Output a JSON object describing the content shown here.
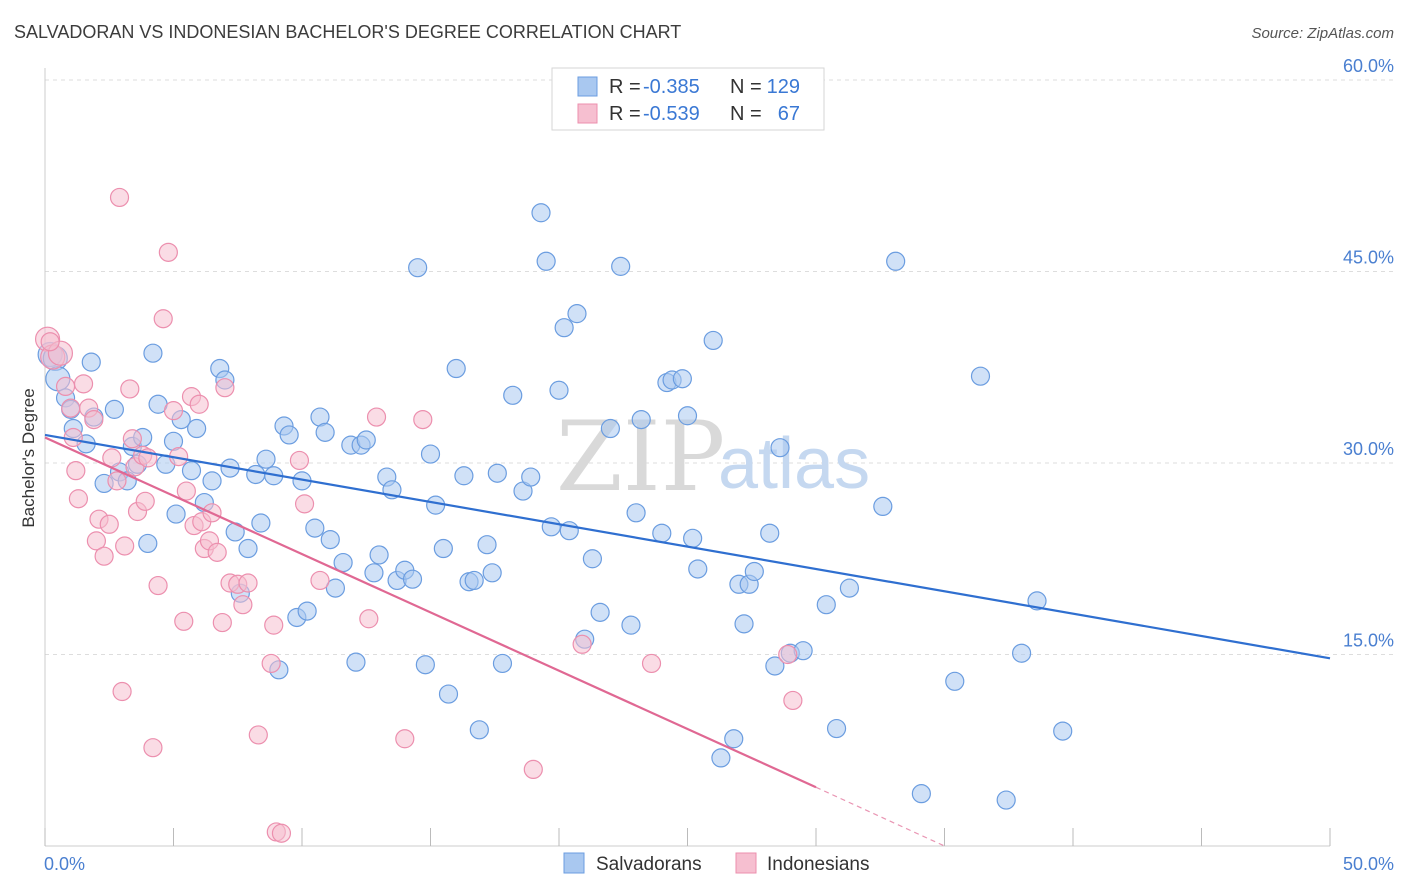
{
  "title": "SALVADORAN VS INDONESIAN BACHELOR'S DEGREE CORRELATION CHART",
  "source": "Source: ZipAtlas.com",
  "watermark": {
    "zip": "ZIP",
    "atlas": "atlas"
  },
  "colors": {
    "blue_fill": "#a9c8f0",
    "blue_stroke": "#6b9de0",
    "blue_line": "#2f6fd0",
    "pink_fill": "#f6bfd0",
    "pink_stroke": "#ec8fae",
    "pink_line": "#e06893",
    "grid": "#dddddd",
    "tick_text": "#4a7fd0"
  },
  "legend": {
    "r_label": "R =",
    "n_label": "N =",
    "rows": [
      {
        "r": "-0.385",
        "n": "129",
        "color": "blue"
      },
      {
        "r": "-0.539",
        "n": "67",
        "color": "pink"
      }
    ]
  },
  "chart_data": {
    "type": "scatter",
    "title": "SALVADORAN VS INDONESIAN BACHELOR'S DEGREE CORRELATION CHART",
    "xlabel": "",
    "ylabel": "Bachelor's Degree",
    "xlim": [
      0,
      50
    ],
    "ylim": [
      0,
      60
    ],
    "x_ticks": [
      "0.0%",
      "50.0%"
    ],
    "y_ticks": [
      "15.0%",
      "30.0%",
      "45.0%",
      "60.0%"
    ],
    "y_tick_values": [
      15,
      30,
      45,
      60
    ],
    "legend_position": "bottom-center",
    "grid": true,
    "series": [
      {
        "name": "Salvadorans",
        "color": "#a9c8f0",
        "r": -0.385,
        "n": 129,
        "trend": {
          "x": [
            0,
            50
          ],
          "y": [
            32.2,
            14.7
          ]
        },
        "points": [
          [
            0.2,
            38.5
          ],
          [
            0.4,
            38.2
          ],
          [
            0.5,
            36.6
          ],
          [
            0.8,
            35.1
          ],
          [
            1.0,
            34.2
          ],
          [
            1.1,
            32.7
          ],
          [
            1.6,
            31.5
          ],
          [
            1.8,
            37.9
          ],
          [
            1.9,
            33.6
          ],
          [
            2.3,
            28.4
          ],
          [
            2.7,
            34.2
          ],
          [
            2.9,
            29.3
          ],
          [
            3.2,
            28.6
          ],
          [
            3.4,
            31.3
          ],
          [
            3.6,
            29.9
          ],
          [
            3.8,
            32.0
          ],
          [
            4.0,
            23.7
          ],
          [
            4.2,
            38.6
          ],
          [
            4.4,
            34.6
          ],
          [
            4.7,
            29.9
          ],
          [
            5.0,
            31.7
          ],
          [
            5.1,
            26.0
          ],
          [
            5.3,
            33.4
          ],
          [
            5.7,
            29.4
          ],
          [
            5.9,
            32.7
          ],
          [
            6.2,
            26.9
          ],
          [
            6.5,
            28.6
          ],
          [
            6.8,
            37.4
          ],
          [
            7.0,
            36.5
          ],
          [
            7.2,
            29.6
          ],
          [
            7.4,
            24.6
          ],
          [
            7.6,
            19.8
          ],
          [
            7.9,
            23.3
          ],
          [
            8.2,
            29.1
          ],
          [
            8.4,
            25.3
          ],
          [
            8.6,
            30.3
          ],
          [
            8.9,
            29.0
          ],
          [
            9.1,
            13.8
          ],
          [
            9.3,
            32.9
          ],
          [
            9.5,
            32.2
          ],
          [
            9.8,
            17.9
          ],
          [
            10.0,
            28.6
          ],
          [
            10.2,
            18.4
          ],
          [
            10.5,
            24.9
          ],
          [
            10.7,
            33.6
          ],
          [
            10.9,
            32.4
          ],
          [
            11.1,
            24.0
          ],
          [
            11.3,
            20.2
          ],
          [
            11.6,
            22.2
          ],
          [
            11.9,
            31.4
          ],
          [
            12.1,
            14.4
          ],
          [
            12.3,
            31.4
          ],
          [
            12.5,
            31.8
          ],
          [
            12.8,
            21.4
          ],
          [
            13.0,
            22.8
          ],
          [
            13.3,
            28.9
          ],
          [
            13.5,
            27.9
          ],
          [
            13.7,
            20.8
          ],
          [
            14.0,
            21.6
          ],
          [
            14.3,
            20.9
          ],
          [
            14.5,
            45.3
          ],
          [
            14.8,
            14.2
          ],
          [
            15.0,
            30.7
          ],
          [
            15.2,
            26.7
          ],
          [
            15.5,
            23.3
          ],
          [
            15.7,
            11.9
          ],
          [
            16.0,
            37.4
          ],
          [
            16.3,
            29.0
          ],
          [
            16.5,
            20.7
          ],
          [
            16.7,
            20.8
          ],
          [
            16.9,
            9.1
          ],
          [
            17.2,
            23.6
          ],
          [
            17.4,
            21.4
          ],
          [
            17.6,
            29.2
          ],
          [
            17.8,
            14.3
          ],
          [
            18.2,
            35.3
          ],
          [
            18.6,
            27.8
          ],
          [
            18.9,
            28.9
          ],
          [
            19.3,
            49.6
          ],
          [
            19.5,
            45.8
          ],
          [
            19.7,
            25.0
          ],
          [
            20.0,
            35.7
          ],
          [
            20.2,
            40.6
          ],
          [
            20.4,
            24.7
          ],
          [
            20.7,
            41.7
          ],
          [
            21.0,
            16.2
          ],
          [
            21.3,
            22.5
          ],
          [
            21.6,
            18.3
          ],
          [
            22.0,
            32.7
          ],
          [
            22.4,
            45.4
          ],
          [
            22.8,
            17.3
          ],
          [
            23.0,
            26.1
          ],
          [
            23.2,
            33.4
          ],
          [
            24.0,
            24.5
          ],
          [
            24.2,
            36.3
          ],
          [
            24.4,
            36.5
          ],
          [
            24.8,
            36.6
          ],
          [
            25.0,
            33.7
          ],
          [
            25.2,
            24.1
          ],
          [
            25.4,
            21.7
          ],
          [
            26.0,
            39.6
          ],
          [
            26.3,
            6.9
          ],
          [
            26.8,
            8.4
          ],
          [
            27.0,
            20.5
          ],
          [
            27.2,
            17.4
          ],
          [
            27.4,
            20.5
          ],
          [
            27.6,
            21.5
          ],
          [
            28.2,
            24.5
          ],
          [
            28.4,
            14.1
          ],
          [
            28.6,
            31.2
          ],
          [
            29.0,
            15.1
          ],
          [
            29.5,
            15.3
          ],
          [
            30.4,
            18.9
          ],
          [
            30.8,
            9.2
          ],
          [
            31.3,
            20.2
          ],
          [
            32.6,
            26.6
          ],
          [
            33.1,
            45.8
          ],
          [
            34.1,
            4.1
          ],
          [
            35.4,
            12.9
          ],
          [
            36.4,
            36.8
          ],
          [
            37.4,
            3.6
          ],
          [
            38.0,
            15.1
          ],
          [
            38.6,
            19.2
          ],
          [
            39.6,
            9.0
          ]
        ]
      },
      {
        "name": "Indonesians",
        "color": "#f6bfd0",
        "r": -0.539,
        "n": 67,
        "trend": {
          "x": [
            0,
            30
          ],
          "y": [
            32.0,
            4.6
          ]
        },
        "trend_dashed": {
          "x": [
            30,
            35
          ],
          "y": [
            4.6,
            0.0
          ]
        },
        "points": [
          [
            0.1,
            39.7
          ],
          [
            0.3,
            38.3
          ],
          [
            0.6,
            38.6
          ],
          [
            0.8,
            36.0
          ],
          [
            1.0,
            34.3
          ],
          [
            1.1,
            32.0
          ],
          [
            1.2,
            29.4
          ],
          [
            1.3,
            27.2
          ],
          [
            1.5,
            36.2
          ],
          [
            1.7,
            34.3
          ],
          [
            1.9,
            33.4
          ],
          [
            2.0,
            23.9
          ],
          [
            2.1,
            25.6
          ],
          [
            2.3,
            22.7
          ],
          [
            2.5,
            25.2
          ],
          [
            2.6,
            30.4
          ],
          [
            2.8,
            28.6
          ],
          [
            2.9,
            50.8
          ],
          [
            3.0,
            12.1
          ],
          [
            3.1,
            23.5
          ],
          [
            3.3,
            35.8
          ],
          [
            3.4,
            31.9
          ],
          [
            3.5,
            29.7
          ],
          [
            3.6,
            26.2
          ],
          [
            3.8,
            30.6
          ],
          [
            3.9,
            27.0
          ],
          [
            4.0,
            30.4
          ],
          [
            4.2,
            7.7
          ],
          [
            4.4,
            20.4
          ],
          [
            4.6,
            41.3
          ],
          [
            4.8,
            46.5
          ],
          [
            5.0,
            34.1
          ],
          [
            5.2,
            30.5
          ],
          [
            5.4,
            17.6
          ],
          [
            5.5,
            27.8
          ],
          [
            5.7,
            35.2
          ],
          [
            5.8,
            25.1
          ],
          [
            6.0,
            34.6
          ],
          [
            6.1,
            25.4
          ],
          [
            6.2,
            23.3
          ],
          [
            6.4,
            23.9
          ],
          [
            6.5,
            26.1
          ],
          [
            6.7,
            23.0
          ],
          [
            6.9,
            17.5
          ],
          [
            7.0,
            35.9
          ],
          [
            7.2,
            20.6
          ],
          [
            7.5,
            20.5
          ],
          [
            7.7,
            18.9
          ],
          [
            7.9,
            20.6
          ],
          [
            8.3,
            8.7
          ],
          [
            8.8,
            14.3
          ],
          [
            8.9,
            17.3
          ],
          [
            9.0,
            1.1
          ],
          [
            9.2,
            1.0
          ],
          [
            9.9,
            30.2
          ],
          [
            10.1,
            26.8
          ],
          [
            10.7,
            20.8
          ],
          [
            12.6,
            17.8
          ],
          [
            12.9,
            33.6
          ],
          [
            14.0,
            8.4
          ],
          [
            14.7,
            33.4
          ],
          [
            19.0,
            6.0
          ],
          [
            20.9,
            15.8
          ],
          [
            23.6,
            14.3
          ],
          [
            28.9,
            15.0
          ],
          [
            29.1,
            11.4
          ],
          [
            0.2,
            39.5
          ]
        ]
      }
    ]
  }
}
